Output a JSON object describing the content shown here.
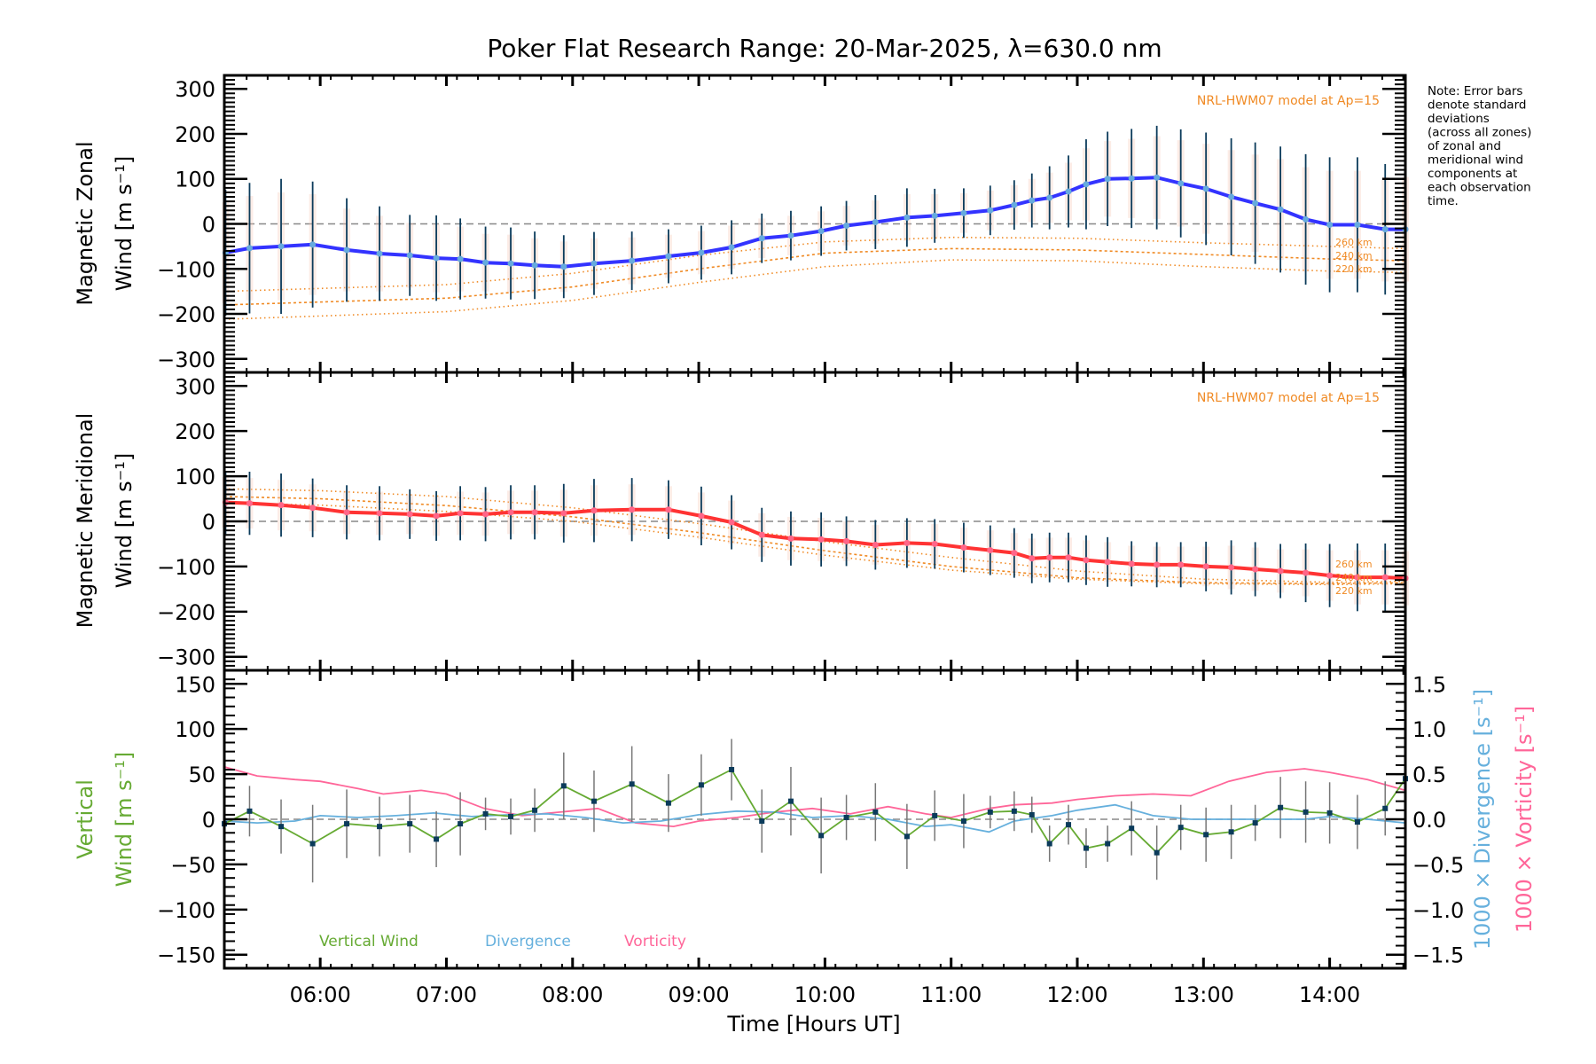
{
  "chart_data": {
    "type": "line",
    "title": "Poker Flat Research Range: 20-Mar-2025, λ=630.0 nm",
    "xlabel": "Time [Hours UT]",
    "xlim": [
      5.24,
      14.6
    ],
    "xticks": [
      {
        "t": 6,
        "label": "06:00"
      },
      {
        "t": 7,
        "label": "07:00"
      },
      {
        "t": 8,
        "label": "08:00"
      },
      {
        "t": 9,
        "label": "09:00"
      },
      {
        "t": 10,
        "label": "10:00"
      },
      {
        "t": 11,
        "label": "11:00"
      },
      {
        "t": 12,
        "label": "12:00"
      },
      {
        "t": 13,
        "label": "13:00"
      },
      {
        "t": 14,
        "label": "14:00"
      }
    ],
    "note": [
      "Note: Error bars",
      "denote standard",
      "deviations",
      "(across all zones)",
      "of zonal and",
      "meridional wind",
      "components at",
      "each observation",
      "time."
    ],
    "panels": [
      {
        "id": "zonal",
        "ylabel_line1": "Magnetic Zonal",
        "ylabel_line2": "Wind [m s⁻¹]",
        "ylim": [
          -330,
          330
        ],
        "yticks": [
          300,
          200,
          100,
          0,
          -100,
          -200,
          -300
        ],
        "ytick_labels": [
          "300",
          "200",
          "100",
          "0",
          "−100",
          "−200",
          "−300"
        ],
        "model_label": "NRL-HWM07 model at Ap=15",
        "model_altitudes": [
          "260 km",
          "240 km",
          "220 km"
        ],
        "series": {
          "name": "Zonal wind",
          "color": "#3333ff",
          "t": [
            5.25,
            5.44,
            5.69,
            5.94,
            6.21,
            6.47,
            6.71,
            6.92,
            7.11,
            7.31,
            7.51,
            7.7,
            7.93,
            8.17,
            8.47,
            8.76,
            9.02,
            9.26,
            9.5,
            9.73,
            9.97,
            10.17,
            10.4,
            10.65,
            10.87,
            11.1,
            11.31,
            11.5,
            11.64,
            11.78,
            11.93,
            12.07,
            12.24,
            12.43,
            12.63,
            12.82,
            13.02,
            13.22,
            13.41,
            13.61,
            13.81,
            14.0,
            14.22,
            14.44,
            14.6
          ],
          "values": [
            -64,
            -54,
            -50,
            -46,
            -58,
            -66,
            -70,
            -76,
            -78,
            -86,
            -88,
            -92,
            -95,
            -88,
            -82,
            -72,
            -64,
            -52,
            -32,
            -26,
            -16,
            -4,
            4,
            14,
            18,
            24,
            30,
            42,
            52,
            58,
            72,
            88,
            100,
            101,
            103,
            90,
            78,
            60,
            46,
            32,
            10,
            -2,
            -2,
            -12,
            -12
          ],
          "errors": [
            140,
            145,
            150,
            140,
            115,
            105,
            90,
            95,
            90,
            80,
            80,
            75,
            70,
            70,
            65,
            60,
            60,
            60,
            55,
            55,
            55,
            55,
            60,
            65,
            60,
            55,
            55,
            55,
            60,
            70,
            80,
            100,
            105,
            110,
            115,
            120,
            125,
            130,
            135,
            140,
            145,
            150,
            150,
            145,
            145
          ]
        },
        "model": [
          {
            "name": "260 km",
            "t": [
              5.24,
              7,
              8,
              9,
              10,
              11,
              12,
              13,
              14,
              14.6
            ],
            "values": [
              -150,
              -135,
              -110,
              -70,
              -40,
              -30,
              -32,
              -42,
              -50,
              -55
            ]
          },
          {
            "name": "240 km",
            "t": [
              5.24,
              7,
              8,
              9,
              10,
              11,
              12,
              13,
              14,
              14.6
            ],
            "values": [
              -180,
              -165,
              -140,
              -100,
              -65,
              -55,
              -58,
              -68,
              -78,
              -82
            ]
          },
          {
            "name": "220 km",
            "t": [
              5.24,
              7,
              8,
              9,
              10,
              11,
              12,
              13,
              14,
              14.6
            ],
            "values": [
              -212,
              -195,
              -170,
              -130,
              -95,
              -80,
              -82,
              -95,
              -105,
              -108
            ]
          }
        ]
      },
      {
        "id": "meridional",
        "ylabel_line1": "Magnetic Meridional",
        "ylabel_line2": "Wind [m s⁻¹]",
        "ylim": [
          -330,
          330
        ],
        "yticks": [
          300,
          200,
          100,
          0,
          -100,
          -200,
          -300
        ],
        "ytick_labels": [
          "300",
          "200",
          "100",
          "0",
          "−100",
          "−200",
          "−300"
        ],
        "model_label": "NRL-HWM07 model at Ap=15",
        "model_altitudes": [
          "260 km",
          "240 km",
          "220 km"
        ],
        "series": {
          "name": "Meridional wind",
          "color": "#ff3333",
          "t": [
            5.25,
            5.44,
            5.69,
            5.94,
            6.21,
            6.47,
            6.71,
            6.92,
            7.11,
            7.31,
            7.51,
            7.7,
            7.93,
            8.17,
            8.47,
            8.76,
            9.02,
            9.26,
            9.5,
            9.73,
            9.97,
            10.17,
            10.4,
            10.65,
            10.87,
            11.1,
            11.31,
            11.5,
            11.64,
            11.78,
            11.93,
            12.07,
            12.24,
            12.43,
            12.63,
            12.82,
            13.02,
            13.22,
            13.41,
            13.61,
            13.81,
            14.0,
            14.22,
            14.44,
            14.6
          ],
          "values": [
            42,
            40,
            36,
            30,
            20,
            18,
            16,
            12,
            18,
            16,
            20,
            20,
            18,
            24,
            26,
            26,
            12,
            -2,
            -30,
            -38,
            -40,
            -44,
            -52,
            -48,
            -50,
            -58,
            -64,
            -70,
            -82,
            -80,
            -80,
            -86,
            -90,
            -94,
            -96,
            -96,
            -100,
            -102,
            -106,
            -110,
            -114,
            -120,
            -124,
            -124,
            -126
          ],
          "errors": [
            70,
            70,
            70,
            65,
            60,
            60,
            55,
            55,
            60,
            60,
            60,
            60,
            65,
            70,
            70,
            65,
            65,
            60,
            60,
            60,
            60,
            55,
            55,
            55,
            55,
            55,
            55,
            55,
            55,
            55,
            55,
            55,
            55,
            50,
            50,
            50,
            55,
            60,
            60,
            60,
            65,
            70,
            75,
            75,
            75
          ]
        },
        "model": [
          {
            "name": "260 km",
            "t": [
              5.24,
              6,
              7,
              8,
              9,
              10,
              11,
              12,
              13,
              14,
              14.6
            ],
            "values": [
              72,
              68,
              55,
              30,
              -5,
              -45,
              -80,
              -110,
              -128,
              -135,
              -133
            ]
          },
          {
            "name": "240 km",
            "t": [
              5.24,
              6,
              7,
              8,
              9,
              10,
              11,
              12,
              13,
              14,
              14.6
            ],
            "values": [
              55,
              50,
              35,
              10,
              -25,
              -65,
              -100,
              -125,
              -136,
              -138,
              -136
            ]
          },
          {
            "name": "220 km",
            "t": [
              5.24,
              6,
              7,
              8,
              9,
              10,
              11,
              12,
              13,
              14,
              14.6
            ],
            "values": [
              40,
              36,
              22,
              0,
              -35,
              -75,
              -108,
              -128,
              -138,
              -140,
              -138
            ]
          }
        ]
      },
      {
        "id": "vertical",
        "ylabel_line1": "Vertical",
        "ylabel_line2": "Wind [m s⁻¹]",
        "ylim": [
          -165,
          165
        ],
        "yticks": [
          150,
          100,
          50,
          0,
          -50,
          -100,
          -150
        ],
        "ytick_labels": [
          "150",
          "100",
          "50",
          "0",
          "−50",
          "−100",
          "−150"
        ],
        "y2lim": [
          -1.65,
          1.65
        ],
        "y2ticks": [
          1.5,
          1.0,
          0.5,
          0.0,
          -0.5,
          -1.0,
          -1.5
        ],
        "y2tick_labels": [
          "1.5",
          "1.0",
          "0.5",
          "0.0",
          "−0.5",
          "−1.0",
          "−1.5"
        ],
        "y2label_div": "1000 × Divergence [s⁻¹]",
        "y2label_vort": "1000 × Vorticity [s⁻¹]",
        "legend": [
          {
            "label": "Vertical Wind",
            "color": "#66aa33"
          },
          {
            "label": "Divergence",
            "color": "#66b0dd"
          },
          {
            "label": "Vorticity",
            "color": "#ff6699"
          }
        ],
        "vertical_wind": {
          "t": [
            5.24,
            5.44,
            5.69,
            5.94,
            6.21,
            6.47,
            6.71,
            6.92,
            7.11,
            7.31,
            7.51,
            7.7,
            7.93,
            8.17,
            8.47,
            8.76,
            9.02,
            9.26,
            9.5,
            9.73,
            9.97,
            10.17,
            10.4,
            10.65,
            10.87,
            11.1,
            11.31,
            11.5,
            11.64,
            11.78,
            11.93,
            12.07,
            12.24,
            12.43,
            12.63,
            12.82,
            13.02,
            13.22,
            13.41,
            13.61,
            13.81,
            14.0,
            14.22,
            14.44,
            14.6
          ],
          "values": [
            -5,
            9,
            -8,
            -27,
            -5,
            -8,
            -5,
            -22,
            -5,
            6,
            3,
            10,
            37,
            20,
            39,
            18,
            38,
            55,
            -2,
            20,
            -18,
            2,
            8,
            -19,
            4,
            -2,
            8,
            9,
            5,
            -27,
            -6,
            -32,
            -27,
            -10,
            -37,
            -9,
            -17,
            -14,
            -4,
            13,
            8,
            7,
            -3,
            12,
            45
          ],
          "errors": [
            0,
            28,
            30,
            43,
            38,
            33,
            32,
            31,
            35,
            18,
            20,
            24,
            37,
            34,
            42,
            32,
            34,
            34,
            35,
            38,
            42,
            25,
            32,
            36,
            28,
            30,
            18,
            22,
            20,
            20,
            22,
            22,
            20,
            30,
            30,
            25,
            30,
            30,
            20,
            34,
            34,
            34,
            30,
            30,
            0
          ]
        },
        "divergence": {
          "t": [
            5.24,
            5.5,
            5.8,
            6.0,
            6.3,
            6.6,
            6.9,
            7.2,
            7.5,
            7.8,
            8.1,
            8.4,
            8.7,
            9.0,
            9.3,
            9.6,
            9.9,
            10.2,
            10.5,
            10.8,
            11.0,
            11.3,
            11.5,
            11.8,
            12.0,
            12.3,
            12.6,
            12.9,
            13.2,
            13.5,
            13.8,
            14.0,
            14.3,
            14.6
          ],
          "values": [
            -0.02,
            -0.04,
            -0.02,
            0.04,
            0.02,
            0.04,
            0.07,
            0.03,
            0.05,
            0.06,
            0.02,
            -0.04,
            -0.02,
            0.05,
            0.09,
            0.08,
            0.02,
            0.04,
            0.0,
            -0.08,
            -0.06,
            -0.14,
            -0.02,
            0.04,
            0.1,
            0.16,
            0.04,
            0.0,
            0.0,
            0.0,
            0.0,
            0.03,
            0.0,
            -0.04
          ]
        },
        "vorticity": {
          "t": [
            5.24,
            5.5,
            5.8,
            6.0,
            6.3,
            6.5,
            6.8,
            7.0,
            7.3,
            7.6,
            7.9,
            8.2,
            8.5,
            8.8,
            9.0,
            9.3,
            9.6,
            9.9,
            10.2,
            10.5,
            10.8,
            11.0,
            11.3,
            11.5,
            11.8,
            12.0,
            12.3,
            12.6,
            12.9,
            13.2,
            13.5,
            13.8,
            14.0,
            14.3,
            14.6
          ],
          "values": [
            0.58,
            0.48,
            0.44,
            0.42,
            0.34,
            0.28,
            0.32,
            0.28,
            0.12,
            0.04,
            0.08,
            0.12,
            -0.04,
            -0.08,
            -0.02,
            0.02,
            0.08,
            0.12,
            0.06,
            0.14,
            0.06,
            0.02,
            0.12,
            0.16,
            0.18,
            0.22,
            0.26,
            0.28,
            0.26,
            0.42,
            0.52,
            0.56,
            0.52,
            0.44,
            0.32
          ]
        }
      }
    ]
  }
}
